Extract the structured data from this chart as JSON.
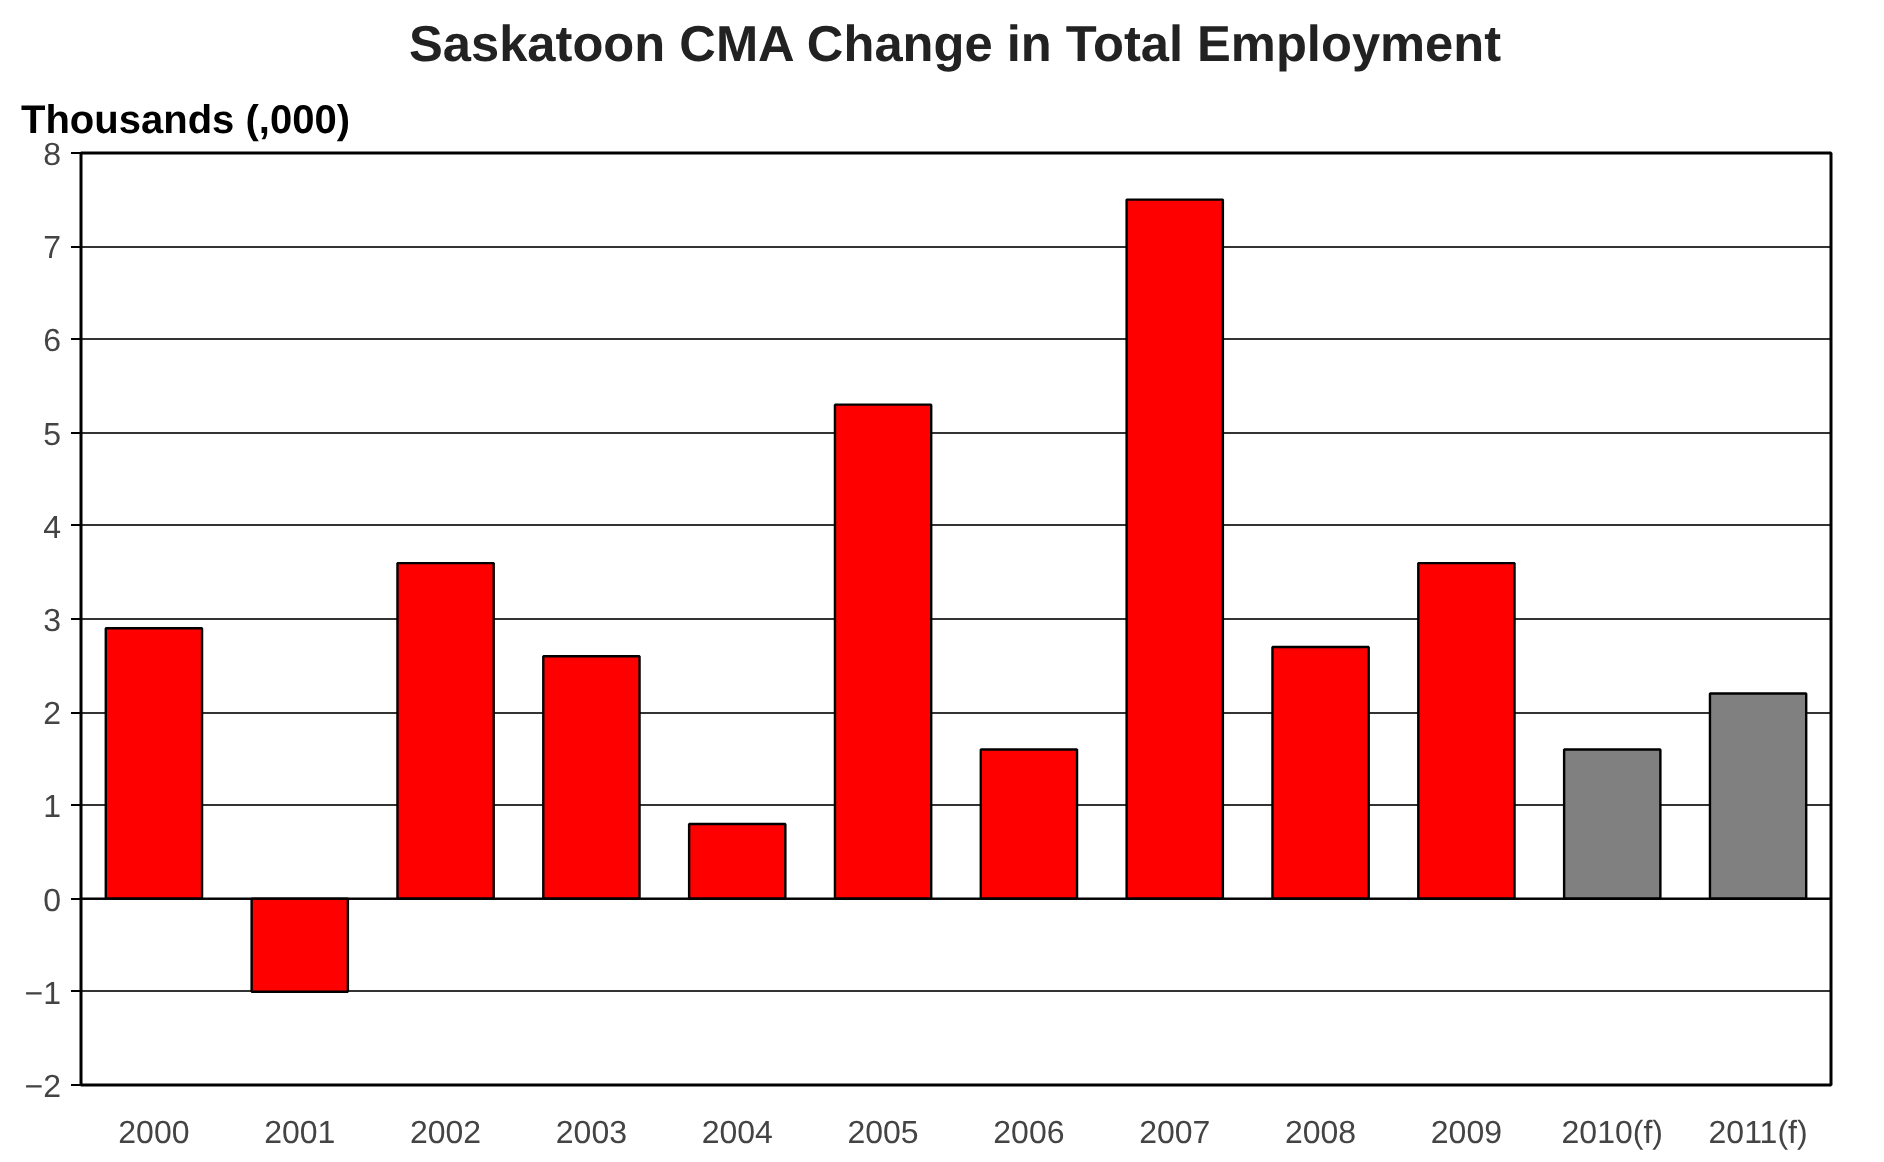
{
  "chart_data": {
    "type": "bar",
    "title": "Saskatoon CMA Change in Total Employment",
    "ylabel": "Thousands (,000)",
    "categories": [
      "2000",
      "2001",
      "2002",
      "2003",
      "2004",
      "2005",
      "2006",
      "2007",
      "2008",
      "2009",
      "2010(f)",
      "2011(f)"
    ],
    "values": [
      2.9,
      -1.0,
      3.6,
      2.6,
      0.8,
      5.3,
      1.6,
      7.5,
      2.7,
      3.6,
      1.6,
      2.2
    ],
    "colors": [
      "#ff0000",
      "#ff0000",
      "#ff0000",
      "#ff0000",
      "#ff0000",
      "#ff0000",
      "#ff0000",
      "#ff0000",
      "#ff0000",
      "#ff0000",
      "#808080",
      "#808080"
    ],
    "ylim": [
      -2,
      8
    ],
    "yticks": [
      -2,
      -1,
      0,
      1,
      2,
      3,
      4,
      5,
      6,
      7,
      8
    ],
    "grid": "y"
  }
}
